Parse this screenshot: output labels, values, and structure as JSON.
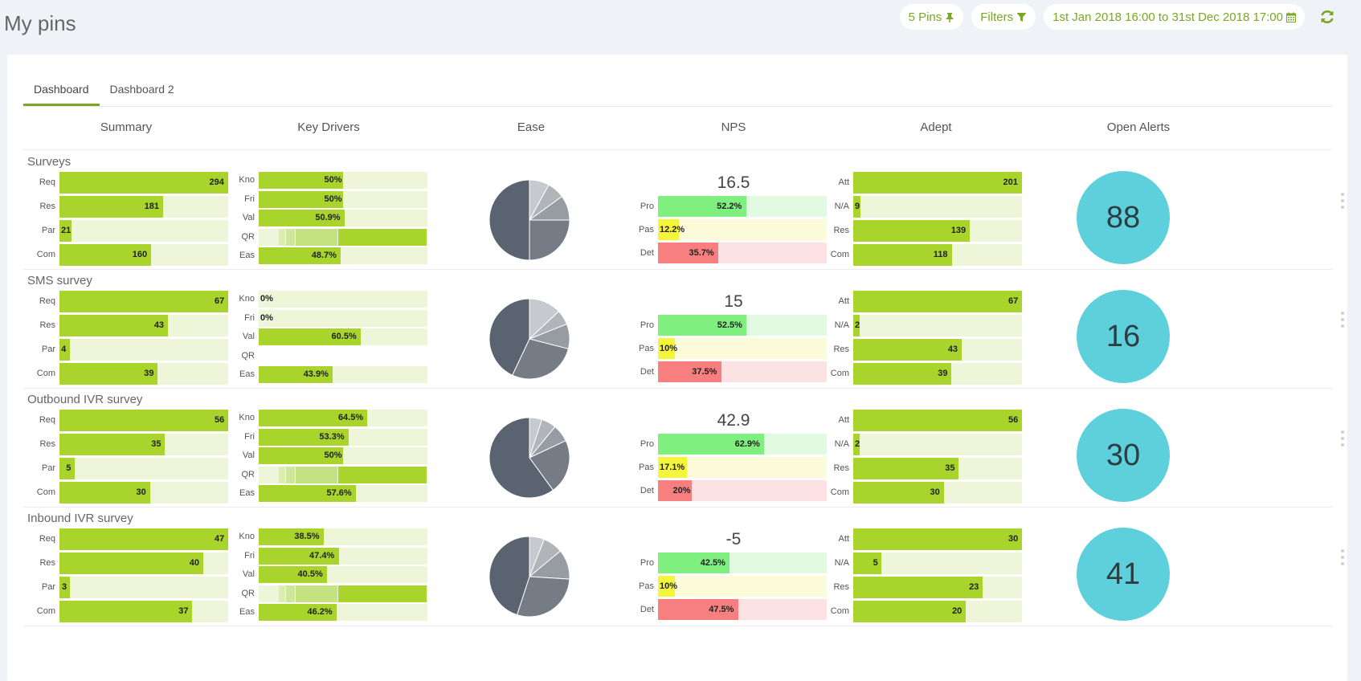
{
  "page_title": "My pins",
  "toolbar": {
    "pins_label": "5 Pins",
    "filters_label": "Filters",
    "date_range": "1st Jan 2018 16:00 to 31st Dec 2018 17:00"
  },
  "tabs": [
    "Dashboard",
    "Dashboard 2"
  ],
  "columns": [
    "Summary",
    "Key Drivers",
    "Ease",
    "NPS",
    "Adept",
    "Open Alerts"
  ],
  "colors": {
    "accent": "#7aa626",
    "bar_fill": "#a8d42c",
    "bar_track": "#eef5d9",
    "nps_pro": "#7ff07f",
    "nps_pro_track": "#e2fae2",
    "nps_pas": "#f5f53a",
    "nps_pas_track": "#fbfbd9",
    "nps_det": "#f77f7f",
    "nps_det_track": "#fde2e4",
    "alert_circle": "#5dd0dc"
  },
  "icons": {
    "pin": "pin-icon",
    "filter": "filter-icon",
    "calendar": "calendar-icon",
    "refresh": "refresh-icon"
  },
  "sections": [
    {
      "title": "Surveys",
      "summary": [
        {
          "label": "Req",
          "value": 294,
          "fraction": 1.0
        },
        {
          "label": "Res",
          "value": 181,
          "fraction": 0.615
        },
        {
          "label": "Par",
          "value": 21,
          "fraction": 0.071
        },
        {
          "label": "Com",
          "value": 160,
          "fraction": 0.544
        }
      ],
      "key_drivers": [
        {
          "label": "Kno",
          "value": "50%",
          "fraction": 0.5
        },
        {
          "label": "Fri",
          "value": "50%",
          "fraction": 0.5
        },
        {
          "label": "Val",
          "value": "50.9%",
          "fraction": 0.509
        },
        {
          "label": "QR",
          "value": "",
          "fraction": 0,
          "qr": true
        },
        {
          "label": "Eas",
          "value": "48.7%",
          "fraction": 0.487
        }
      ],
      "ease_pie": [
        0.5,
        0.08,
        0.07,
        0.1,
        0.25
      ],
      "nps": {
        "score": "16.5",
        "rows": [
          {
            "label": "Pro",
            "value": "52.2%",
            "fraction": 0.522
          },
          {
            "label": "Pas",
            "value": "12.2%",
            "fraction": 0.122
          },
          {
            "label": "Det",
            "value": "35.7%",
            "fraction": 0.357
          }
        ]
      },
      "adept": [
        {
          "label": "Att",
          "value": 201,
          "fraction": 1.0
        },
        {
          "label": "N/A",
          "value": 9,
          "fraction": 0.045
        },
        {
          "label": "Res",
          "value": 139,
          "fraction": 0.692
        },
        {
          "label": "Com",
          "value": 118,
          "fraction": 0.587
        }
      ],
      "open_alerts": "88"
    },
    {
      "title": "SMS survey",
      "summary": [
        {
          "label": "Req",
          "value": 67,
          "fraction": 1.0
        },
        {
          "label": "Res",
          "value": 43,
          "fraction": 0.642
        },
        {
          "label": "Par",
          "value": 4,
          "fraction": 0.06
        },
        {
          "label": "Com",
          "value": 39,
          "fraction": 0.582
        }
      ],
      "key_drivers": [
        {
          "label": "Kno",
          "value": "0%",
          "fraction": 0
        },
        {
          "label": "Fri",
          "value": "0%",
          "fraction": 0
        },
        {
          "label": "Val",
          "value": "60.5%",
          "fraction": 0.605
        },
        {
          "label": "QR",
          "value": "",
          "fraction": 0,
          "empty": true
        },
        {
          "label": "Eas",
          "value": "43.9%",
          "fraction": 0.439
        }
      ],
      "ease_pie": [
        0.43,
        0.13,
        0.06,
        0.1,
        0.28
      ],
      "nps": {
        "score": "15",
        "rows": [
          {
            "label": "Pro",
            "value": "52.5%",
            "fraction": 0.525
          },
          {
            "label": "Pas",
            "value": "10%",
            "fraction": 0.1
          },
          {
            "label": "Det",
            "value": "37.5%",
            "fraction": 0.375
          }
        ]
      },
      "adept": [
        {
          "label": "Att",
          "value": 67,
          "fraction": 1.0
        },
        {
          "label": "N/A",
          "value": 2,
          "fraction": 0.03
        },
        {
          "label": "Res",
          "value": 43,
          "fraction": 0.642
        },
        {
          "label": "Com",
          "value": 39,
          "fraction": 0.582
        }
      ],
      "open_alerts": "16"
    },
    {
      "title": "Outbound IVR survey",
      "summary": [
        {
          "label": "Req",
          "value": 56,
          "fraction": 1.0
        },
        {
          "label": "Res",
          "value": 35,
          "fraction": 0.625
        },
        {
          "label": "Par",
          "value": 5,
          "fraction": 0.089
        },
        {
          "label": "Com",
          "value": 30,
          "fraction": 0.536
        }
      ],
      "key_drivers": [
        {
          "label": "Kno",
          "value": "64.5%",
          "fraction": 0.645
        },
        {
          "label": "Fri",
          "value": "53.3%",
          "fraction": 0.533
        },
        {
          "label": "Val",
          "value": "50%",
          "fraction": 0.5
        },
        {
          "label": "QR",
          "value": "",
          "fraction": 0,
          "qr": true
        },
        {
          "label": "Eas",
          "value": "57.6%",
          "fraction": 0.576
        }
      ],
      "ease_pie": [
        0.6,
        0.05,
        0.06,
        0.07,
        0.22
      ],
      "nps": {
        "score": "42.9",
        "rows": [
          {
            "label": "Pro",
            "value": "62.9%",
            "fraction": 0.629
          },
          {
            "label": "Pas",
            "value": "17.1%",
            "fraction": 0.171
          },
          {
            "label": "Det",
            "value": "20%",
            "fraction": 0.2
          }
        ]
      },
      "adept": [
        {
          "label": "Att",
          "value": 56,
          "fraction": 1.0
        },
        {
          "label": "N/A",
          "value": 2,
          "fraction": 0.036
        },
        {
          "label": "Res",
          "value": 35,
          "fraction": 0.625
        },
        {
          "label": "Com",
          "value": 30,
          "fraction": 0.536
        }
      ],
      "open_alerts": "30"
    },
    {
      "title": "Inbound IVR survey",
      "summary": [
        {
          "label": "Req",
          "value": 47,
          "fraction": 1.0
        },
        {
          "label": "Res",
          "value": 40,
          "fraction": 0.851
        },
        {
          "label": "Par",
          "value": 3,
          "fraction": 0.064
        },
        {
          "label": "Com",
          "value": 37,
          "fraction": 0.787
        }
      ],
      "key_drivers": [
        {
          "label": "Kno",
          "value": "38.5%",
          "fraction": 0.385
        },
        {
          "label": "Fri",
          "value": "47.4%",
          "fraction": 0.474
        },
        {
          "label": "Val",
          "value": "40.5%",
          "fraction": 0.405
        },
        {
          "label": "QR",
          "value": "",
          "fraction": 0,
          "qr": true
        },
        {
          "label": "Eas",
          "value": "46.2%",
          "fraction": 0.462
        }
      ],
      "ease_pie": [
        0.45,
        0.06,
        0.08,
        0.12,
        0.29
      ],
      "nps": {
        "score": "-5",
        "rows": [
          {
            "label": "Pro",
            "value": "42.5%",
            "fraction": 0.425
          },
          {
            "label": "Pas",
            "value": "10%",
            "fraction": 0.1
          },
          {
            "label": "Det",
            "value": "47.5%",
            "fraction": 0.475
          }
        ]
      },
      "adept": [
        {
          "label": "Att",
          "value": 30,
          "fraction": 1.0
        },
        {
          "label": "N/A",
          "value": 5,
          "fraction": 0.167
        },
        {
          "label": "Res",
          "value": 23,
          "fraction": 0.767
        },
        {
          "label": "Com",
          "value": 20,
          "fraction": 0.667
        }
      ],
      "open_alerts": "41"
    }
  ]
}
